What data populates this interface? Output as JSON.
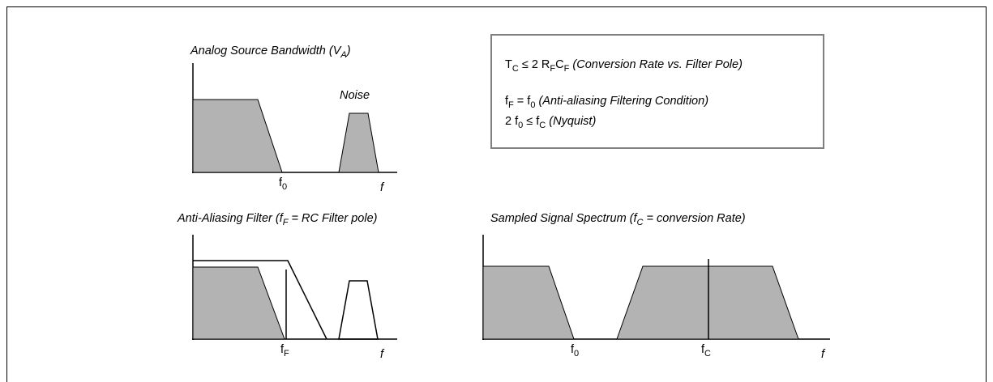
{
  "top_left": {
    "title_pre": "Analog Source Bandwidth (V",
    "title_sub": "A",
    "title_post": ")",
    "noise_label": "Noise",
    "f0_main": "f",
    "f0_sub": "0",
    "axis_f": "f"
  },
  "bottom_left": {
    "title_pre": "Anti-Aliasing Filter (f",
    "title_sub": "F",
    "title_post": " = RC Filter pole)",
    "fF_main": "f",
    "fF_sub": "F",
    "axis_f": "f"
  },
  "bottom_right": {
    "title_pre": "Sampled Signal Spectrum (f",
    "title_sub": "C",
    "title_post": " = conversion Rate)",
    "f0_main": "f",
    "f0_sub": "0",
    "fC_main": "f",
    "fC_sub": "C",
    "axis_f": "f"
  },
  "equations": {
    "eq1": {
      "a": "T",
      "a_sub": "C",
      "b": " ≤ 2 R",
      "b_sub": "F",
      "c": "C",
      "c_sub": "F",
      "desc": " (Conversion Rate vs. Filter Pole)"
    },
    "eq2": {
      "a": "f",
      "a_sub": "F",
      "b": " = f",
      "b_sub": "0",
      "desc": " (Anti-aliasing Filtering Condition)"
    },
    "eq3": {
      "a": "2 f",
      "a_sub": "0",
      "b": " ≤ f",
      "b_sub": "C",
      "desc": " (Nyquist)"
    }
  },
  "colors": {
    "fill": "#b3b3b3",
    "line": "#000000",
    "box_border": "#808080"
  }
}
